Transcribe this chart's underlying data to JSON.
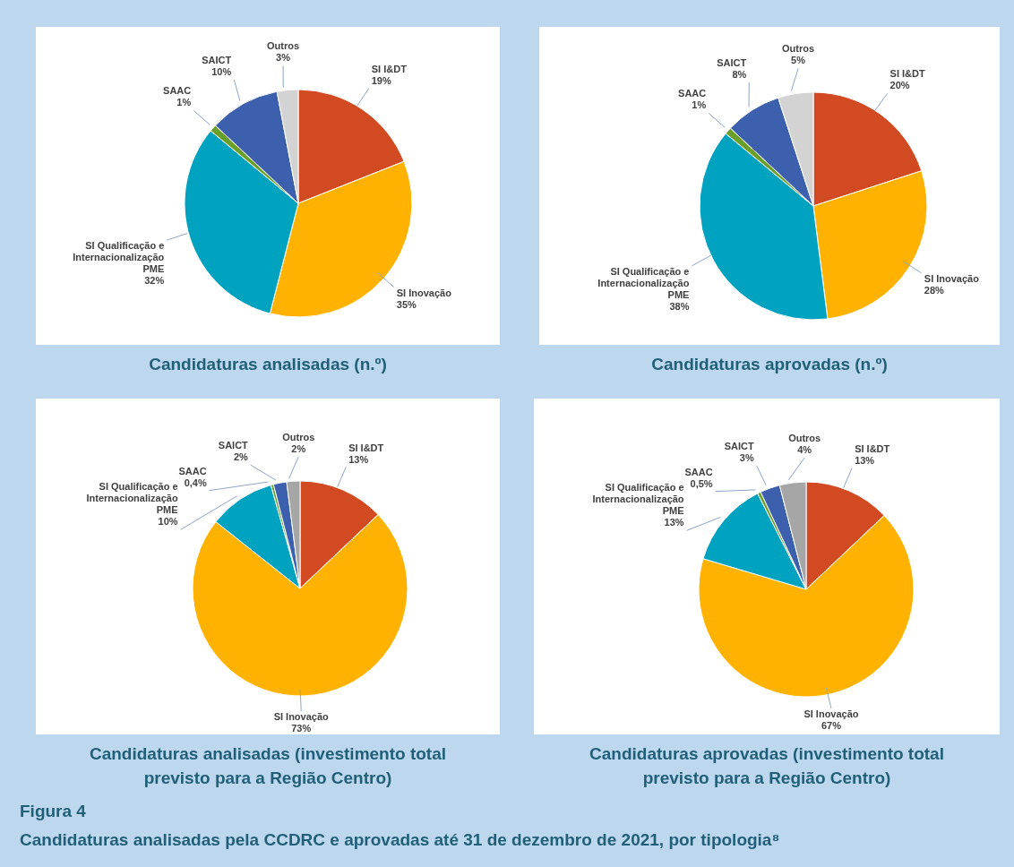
{
  "chart_data": [
    {
      "type": "pie",
      "title": "Candidaturas analisadas (n.º)",
      "categories": [
        "SI I&DT",
        "SI Inovação",
        "SI Qualificação e Internacionalização PME",
        "SAAC",
        "SAICT",
        "Outros"
      ],
      "values": [
        19,
        35,
        32,
        1,
        10,
        3
      ],
      "value_labels": [
        "19%",
        "35%",
        "32%",
        "1%",
        "10%",
        "3%"
      ],
      "colors": [
        "#d24a21",
        "#ffb300",
        "#00a3bf",
        "#6a9f2a",
        "#3c60ad",
        "#d3d3d3"
      ]
    },
    {
      "type": "pie",
      "title": "Candidaturas aprovadas (n.º)",
      "categories": [
        "SI I&DT",
        "SI Inovação",
        "SI Qualificação e Internacionalização PME",
        "SAAC",
        "SAICT",
        "Outros"
      ],
      "values": [
        20,
        28,
        38,
        1,
        8,
        5
      ],
      "value_labels": [
        "20%",
        "28%",
        "38%",
        "1%",
        "8%",
        "5%"
      ],
      "colors": [
        "#d24a21",
        "#ffb300",
        "#00a3bf",
        "#6a9f2a",
        "#3c60ad",
        "#d3d3d3"
      ]
    },
    {
      "type": "pie",
      "title": "Candidaturas analisadas (investimento total previsto para a Região Centro)",
      "categories": [
        "SI I&DT",
        "SI Inovação",
        "SI Qualificação e Internacionalização PME",
        "SAAC",
        "SAICT",
        "Outros"
      ],
      "values": [
        13,
        73,
        10,
        0.4,
        2,
        2
      ],
      "value_labels": [
        "13%",
        "73%",
        "10%",
        "0,4%",
        "2%",
        "2%"
      ],
      "colors": [
        "#d24a21",
        "#ffb300",
        "#00a3bf",
        "#6a9f2a",
        "#3c60ad",
        "#a6a6a6"
      ]
    },
    {
      "type": "pie",
      "title": "Candidaturas aprovadas (investimento total previsto para a Região Centro)",
      "categories": [
        "SI I&DT",
        "SI Inovação",
        "SI Qualificação e Internacionalização PME",
        "SAAC",
        "SAICT",
        "Outros"
      ],
      "values": [
        13,
        67,
        13,
        0.5,
        3,
        4
      ],
      "value_labels": [
        "13%",
        "67%",
        "13%",
        "0,5%",
        "3%",
        "4%"
      ],
      "colors": [
        "#d24a21",
        "#ffb300",
        "#00a3bf",
        "#6a9f2a",
        "#3c60ad",
        "#a6a6a6"
      ],
      "annotations": [
        "Figura 4",
        "Candidaturas analisadas pela CCDRC e aprovadas até 31 de dezembro de 2021, por tipologia⁸"
      ]
    }
  ]
}
